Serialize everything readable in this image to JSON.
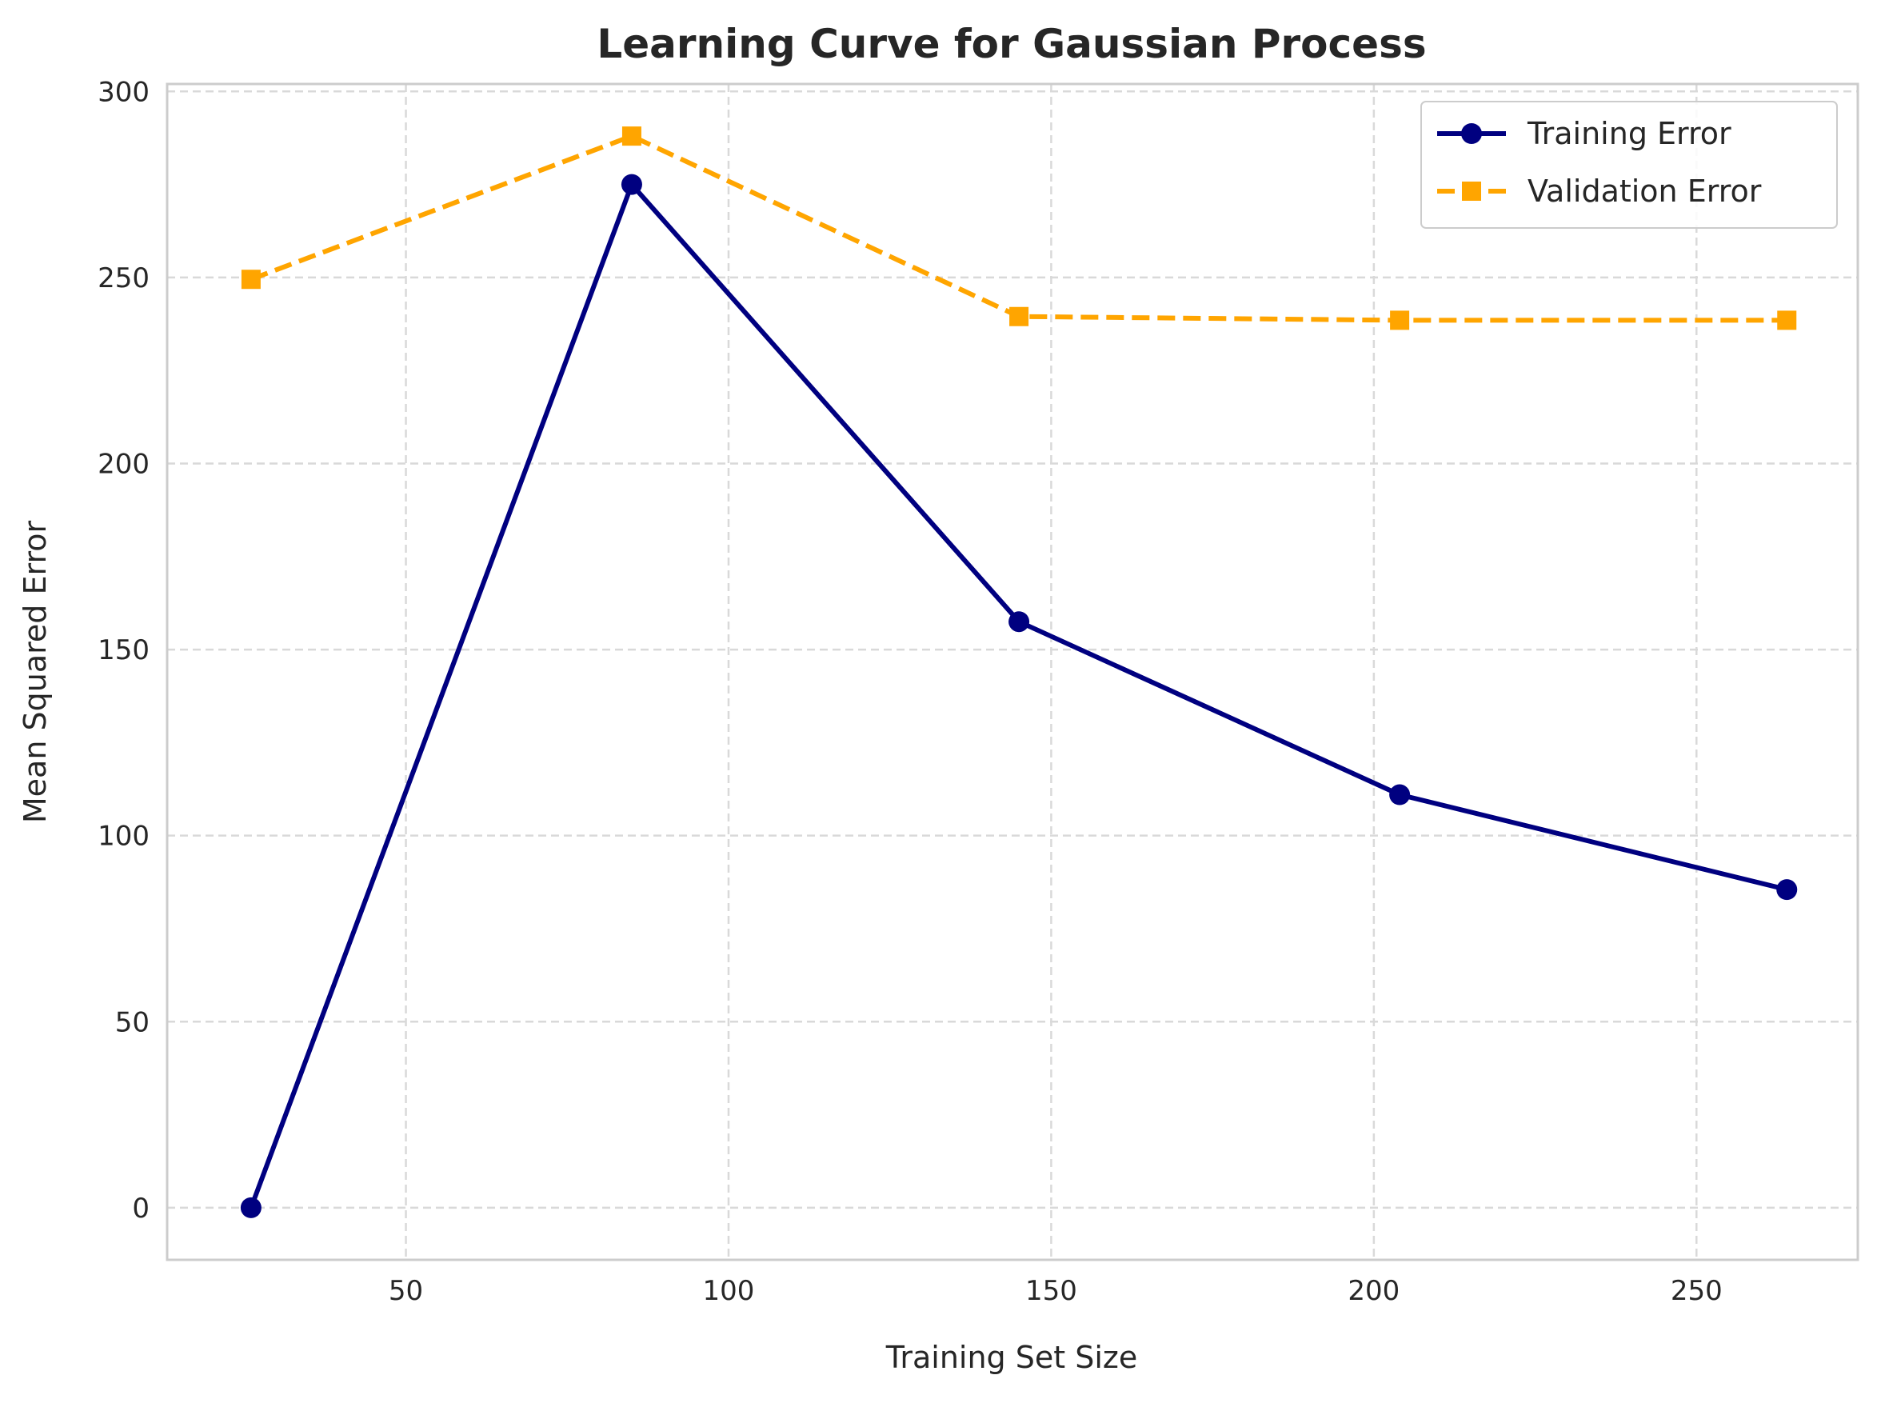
{
  "chart_data": {
    "type": "line",
    "title": "Learning Curve for Gaussian Process",
    "xlabel": "Training Set Size",
    "ylabel": "Mean Squared Error",
    "xlim": [
      13,
      275
    ],
    "ylim": [
      -14,
      302
    ],
    "xticks": [
      50,
      100,
      150,
      200,
      250
    ],
    "yticks": [
      0,
      50,
      100,
      150,
      200,
      250,
      300
    ],
    "grid": true,
    "legend_position": "top-right",
    "series": [
      {
        "name": "Training Error",
        "color": "#000080",
        "marker": "circle",
        "line_style": "solid",
        "x": [
          26,
          85,
          145,
          204,
          264
        ],
        "y": [
          0,
          275,
          157.5,
          111,
          85.5
        ]
      },
      {
        "name": "Validation Error",
        "color": "#FFA500",
        "marker": "square",
        "line_style": "dashed",
        "x": [
          26,
          85,
          145,
          204,
          264
        ],
        "y": [
          249.5,
          288,
          239.5,
          238.5,
          238.5
        ]
      }
    ]
  }
}
